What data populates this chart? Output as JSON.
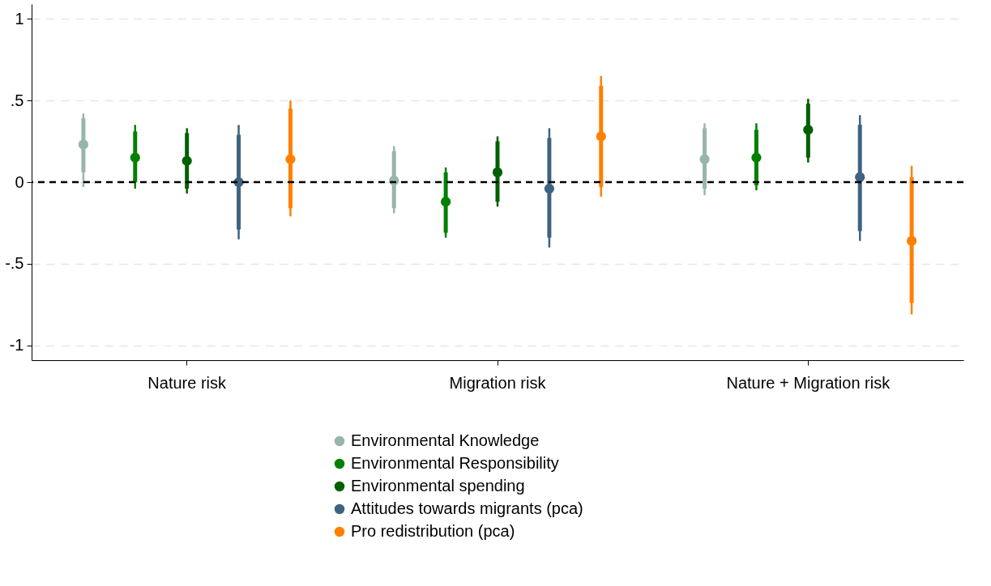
{
  "chart_data": {
    "type": "box",
    "categories": [
      "Nature risk",
      "Migration risk",
      "Nature + Migration risk"
    ],
    "series": [
      {
        "name": "Environmental Knowledge",
        "color": "#98b5ac",
        "boxes": [
          {
            "low": -0.03,
            "q1": 0.06,
            "median": 0.23,
            "q3": 0.39,
            "high": 0.42
          },
          {
            "low": -0.19,
            "q1": -0.16,
            "median": 0.01,
            "q3": 0.19,
            "high": 0.22
          },
          {
            "low": -0.08,
            "q1": -0.04,
            "median": 0.14,
            "q3": 0.33,
            "high": 0.36
          }
        ]
      },
      {
        "name": "Environmental Responsibility",
        "color": "#008000",
        "boxes": [
          {
            "low": -0.04,
            "q1": 0.0,
            "median": 0.15,
            "q3": 0.31,
            "high": 0.35
          },
          {
            "low": -0.34,
            "q1": -0.31,
            "median": -0.12,
            "q3": 0.06,
            "high": 0.09
          },
          {
            "low": -0.05,
            "q1": -0.02,
            "median": 0.15,
            "q3": 0.32,
            "high": 0.36
          }
        ]
      },
      {
        "name": "Environmental spending",
        "color": "#006000",
        "boxes": [
          {
            "low": -0.07,
            "q1": -0.04,
            "median": 0.13,
            "q3": 0.3,
            "high": 0.33
          },
          {
            "low": -0.15,
            "q1": -0.12,
            "median": 0.06,
            "q3": 0.25,
            "high": 0.28
          },
          {
            "low": 0.12,
            "q1": 0.15,
            "median": 0.32,
            "q3": 0.48,
            "high": 0.51
          }
        ]
      },
      {
        "name": "Attitudes towards migrants (pca)",
        "color": "#3e6380",
        "boxes": [
          {
            "low": -0.35,
            "q1": -0.29,
            "median": 0.0,
            "q3": 0.29,
            "high": 0.35
          },
          {
            "low": -0.4,
            "q1": -0.34,
            "median": -0.04,
            "q3": 0.27,
            "high": 0.33
          },
          {
            "low": -0.36,
            "q1": -0.3,
            "median": 0.03,
            "q3": 0.35,
            "high": 0.41
          }
        ]
      },
      {
        "name": "Pro redistribution (pca)",
        "color": "#ff8000",
        "boxes": [
          {
            "low": -0.21,
            "q1": -0.16,
            "median": 0.14,
            "q3": 0.45,
            "high": 0.5
          },
          {
            "low": -0.09,
            "q1": -0.03,
            "median": 0.28,
            "q3": 0.59,
            "high": 0.65
          },
          {
            "low": -0.81,
            "q1": -0.74,
            "median": -0.36,
            "q3": 0.03,
            "high": 0.1
          }
        ]
      }
    ],
    "ylim": [
      -1.09,
      1.09
    ],
    "yticks": [
      1,
      {
        "value": 0.5,
        "label": ".5"
      },
      0,
      {
        "value": -0.5,
        "label": "-.5"
      },
      -1
    ],
    "ref_lines": [
      {
        "axis": "y",
        "value": 0,
        "color": "#000000",
        "line_style": "dashed"
      }
    ],
    "grid": "y",
    "legend": "bottom",
    "marker": "circle"
  }
}
